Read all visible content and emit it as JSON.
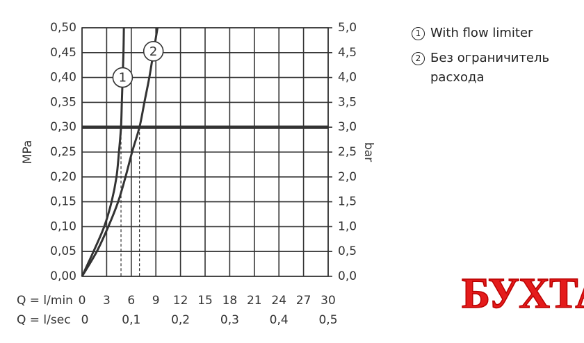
{
  "chart_data": {
    "type": "line",
    "x_label": "Q = l/min",
    "x2_label": "Q = l/sec",
    "y_label": "MPa",
    "y2_label": "bar",
    "xlim": [
      0,
      30
    ],
    "xticks": [
      0,
      3,
      6,
      9,
      12,
      15,
      18,
      21,
      24,
      27,
      30
    ],
    "x2lim": [
      0,
      0.5
    ],
    "x2ticks": [
      0,
      {
        "value": 0.1,
        "label": "0,1"
      },
      {
        "value": 0.2,
        "label": "0,2"
      },
      {
        "value": 0.3,
        "label": "0,3"
      },
      {
        "value": 0.4,
        "label": "0,4"
      },
      {
        "value": 0.5,
        "label": "0,5"
      }
    ],
    "ylim": [
      0,
      0.5
    ],
    "yticks": [
      {
        "value": 0,
        "label": "0,00"
      },
      {
        "value": 0.05,
        "label": "0,05"
      },
      {
        "value": 0.1,
        "label": "0,10"
      },
      {
        "value": 0.15,
        "label": "0,15"
      },
      {
        "value": 0.2,
        "label": "0,20"
      },
      {
        "value": 0.25,
        "label": "0,25"
      },
      {
        "value": 0.3,
        "label": "0,30"
      },
      {
        "value": 0.35,
        "label": "0,35"
      },
      {
        "value": 0.4,
        "label": "0,40"
      },
      {
        "value": 0.45,
        "label": "0,45"
      },
      {
        "value": 0.5,
        "label": "0,50"
      }
    ],
    "y2lim": [
      0,
      5
    ],
    "y2ticks": [
      {
        "value": 0,
        "label": "0,0"
      },
      {
        "value": 0.5,
        "label": "0,5"
      },
      {
        "value": 1,
        "label": "1,0"
      },
      {
        "value": 1.5,
        "label": "1,5"
      },
      {
        "value": 2,
        "label": "2,0"
      },
      {
        "value": 2.5,
        "label": "2,5"
      },
      {
        "value": 3,
        "label": "3,0"
      },
      {
        "value": 3.5,
        "label": "3,5"
      },
      {
        "value": 4,
        "label": "4,0"
      },
      {
        "value": 4.5,
        "label": "4,5"
      },
      {
        "value": 5,
        "label": "5,0"
      }
    ],
    "grid": true,
    "hline": 0.3,
    "series": [
      {
        "name": "With flow limiter",
        "marker": "1",
        "color": "#333333",
        "x": [
          0,
          1.4,
          2.7,
          3.6,
          4.2,
          4.5,
          4.75,
          4.85,
          4.95,
          5.05,
          5.1
        ],
        "values": [
          0,
          0.05,
          0.1,
          0.15,
          0.2,
          0.25,
          0.3,
          0.35,
          0.4,
          0.45,
          0.5
        ]
      },
      {
        "name": "Без ограничитель расхода",
        "marker": "2",
        "color": "#333333",
        "x": [
          0,
          1.8,
          3.2,
          4.4,
          5.3,
          6.1,
          7.0,
          7.6,
          8.2,
          8.7,
          9.2
        ],
        "values": [
          0,
          0.05,
          0.1,
          0.15,
          0.2,
          0.25,
          0.3,
          0.35,
          0.4,
          0.45,
          0.5
        ]
      }
    ],
    "watermark": "БУХТА"
  }
}
